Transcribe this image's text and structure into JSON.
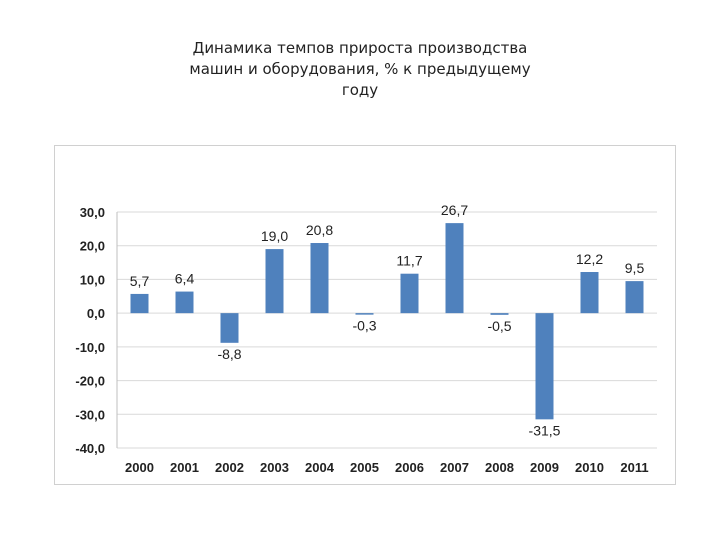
{
  "title_lines": [
    "Динамика темпов прироста производства",
    "машин и оборудования, % к предыдущему",
    "году"
  ],
  "chart_data": {
    "type": "bar",
    "title": "Динамика темпов прироста производства машин и оборудования, % к предыдущему году",
    "categories": [
      "2000",
      "2001",
      "2002",
      "2003",
      "2004",
      "2005",
      "2006",
      "2007",
      "2008",
      "2009",
      "2010",
      "2011"
    ],
    "values": [
      5.7,
      6.4,
      -8.8,
      19.0,
      20.8,
      -0.3,
      11.7,
      26.7,
      -0.5,
      -31.5,
      12.2,
      9.5
    ],
    "data_labels": [
      "5,7",
      "6,4",
      "-8,8",
      "19,0",
      "20,8",
      "-0,3",
      "11,7",
      "26,7",
      "-0,5",
      "-31,5",
      "12,2",
      "9,5"
    ],
    "y_ticks": [
      30,
      20,
      10,
      0,
      -10,
      -20,
      -30,
      -40
    ],
    "y_tick_labels": [
      "30,0",
      "20,0",
      "10,0",
      "0,0",
      "-10,0",
      "-20,0",
      "-30,0",
      "-40,0"
    ],
    "ylim": [
      -40,
      30
    ],
    "grid": true,
    "legend": "none",
    "bar_color": "#4f81bd"
  }
}
